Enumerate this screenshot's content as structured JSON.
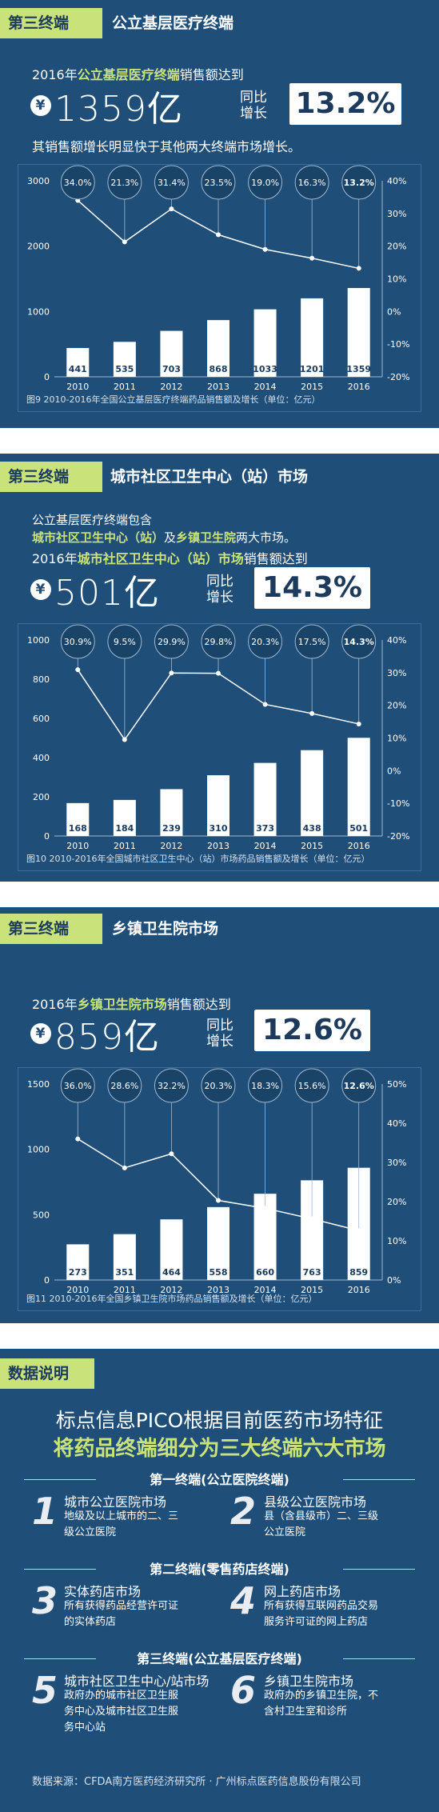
{
  "sections": [
    {
      "tag": "第三终端",
      "title": "公立基层医疗终端",
      "lines": [
        {
          "pre": "2016年",
          "hl": "公立基层医疗终端",
          "post": "销售额达到"
        }
      ],
      "yen": "¥",
      "amount": "1359亿",
      "yoy_line1": "同比",
      "yoy_line2": "增长",
      "growth": "13.2%",
      "note": "其销售额增长明显快于其他两大终端市场增长。",
      "caption": "图9  2010-2016年全国公立基层医疗终端药品销售额及增长（单位：亿元）"
    },
    {
      "tag": "第三终端",
      "title": "城市社区卫生中心（站）市场",
      "lines": [
        {
          "pre": "公立基层医疗终端包含",
          "hl": "",
          "post": ""
        },
        {
          "pre": "",
          "hl": "城市社区卫生中心（站）",
          "post": "及"
        },
        {
          "pre": "",
          "hl": "乡镇卫生院",
          "post": "两大市场。"
        },
        {
          "pre": "2016年",
          "hl": "城市社区卫生中心（站）市场",
          "post": "销售额达到"
        }
      ],
      "yen": "¥",
      "amount": "501亿",
      "yoy_line1": "同比",
      "yoy_line2": "增长",
      "growth": "14.3%",
      "caption": "图10  2010-2016年全国城市社区卫生中心（站）市场药品销售额及增长（单位：亿元）"
    },
    {
      "tag": "第三终端",
      "title": "乡镇卫生院市场",
      "lines": [
        {
          "pre": "2016年",
          "hl": "乡镇卫生院市场",
          "post": "销售额达到"
        }
      ],
      "yen": "¥",
      "amount": "859亿",
      "yoy_line1": "同比",
      "yoy_line2": "增长",
      "growth": "12.6%",
      "caption": "图11  2010-2016年全国乡镇卫生院市场药品销售额及增长（单位：亿元）"
    }
  ],
  "chart_data": [
    {
      "type": "bar",
      "categories": [
        "2010",
        "2011",
        "2012",
        "2013",
        "2014",
        "2015",
        "2016"
      ],
      "series": [
        {
          "values": [
            441,
            535,
            703,
            868,
            1033,
            1201,
            1359
          ]
        },
        {
          "type": "line",
          "values": [
            34.0,
            21.3,
            31.4,
            23.5,
            19.0,
            16.3,
            13.2
          ]
        }
      ],
      "growth_labels": [
        "34.0%",
        "21.3%",
        "31.4%",
        "23.5%",
        "19.0%",
        "16.3%",
        "13.2%"
      ],
      "ylim": [
        0,
        3000
      ],
      "y_ticks": [
        "0",
        "1000",
        "2000",
        "3000"
      ],
      "y2lim": [
        -20,
        40
      ],
      "y2_ticks": [
        "-20%",
        "-10%",
        "0%",
        "10%",
        "20%",
        "30%",
        "40%"
      ]
    },
    {
      "type": "bar",
      "categories": [
        "2010",
        "2011",
        "2012",
        "2013",
        "2014",
        "2015",
        "2016"
      ],
      "series": [
        {
          "values": [
            168,
            184,
            239,
            310,
            373,
            438,
            501
          ]
        },
        {
          "type": "line",
          "values": [
            30.9,
            9.5,
            29.9,
            29.8,
            20.3,
            17.5,
            14.3
          ]
        }
      ],
      "growth_labels": [
        "30.9%",
        "9.5%",
        "29.9%",
        "29.8%",
        "20.3%",
        "17.5%",
        "14.3%"
      ],
      "ylim": [
        0,
        1000
      ],
      "y_ticks": [
        "0",
        "200",
        "400",
        "600",
        "800",
        "1000"
      ],
      "y2lim": [
        -20,
        40
      ],
      "y2_ticks": [
        "-20%",
        "-10%",
        "0%",
        "10%",
        "20%",
        "30%",
        "40%"
      ]
    },
    {
      "type": "bar",
      "categories": [
        "2010",
        "2011",
        "2012",
        "2013",
        "2014",
        "2015",
        "2016"
      ],
      "series": [
        {
          "values": [
            273,
            351,
            464,
            558,
            660,
            763,
            859
          ]
        },
        {
          "type": "line",
          "values": [
            36.0,
            28.6,
            32.2,
            20.3,
            18.3,
            15.6,
            12.6
          ]
        }
      ],
      "growth_labels": [
        "36.0%",
        "28.6%",
        "32.2%",
        "20.3%",
        "18.3%",
        "15.6%",
        "12.6%"
      ],
      "ylim": [
        0,
        1500
      ],
      "y_ticks": [
        "0",
        "500",
        "1000",
        "1500"
      ],
      "y2lim": [
        0,
        50
      ],
      "y2_ticks": [
        "0%",
        "10%",
        "20%",
        "30%",
        "40%",
        "50%"
      ]
    }
  ],
  "info": {
    "tag": "数据说明",
    "headline1": "标点信息PICO根据目前医药市场特征",
    "headline2": "将药品终端细分为三大终端六大市场",
    "groups": [
      {
        "title": "第一终端(公立医院终端)",
        "items": [
          {
            "n": "1",
            "t": "城市公立医院市场",
            "d1": "地级及以上城市的二、三",
            "d2": "级公立医院"
          },
          {
            "n": "2",
            "t": "县级公立医院市场",
            "d1": "县（含县级市）二、三级",
            "d2": "公立医院"
          }
        ]
      },
      {
        "title": "第二终端(零售药店终端)",
        "items": [
          {
            "n": "3",
            "t": "实体药店市场",
            "d1": "所有获得药品经营许可证",
            "d2": "的实体药店"
          },
          {
            "n": "4",
            "t": "网上药店市场",
            "d1": "所有获得互联网药品交易",
            "d2": "服务许可证的网上药店"
          }
        ]
      },
      {
        "title": "第三终端(公立基层医疗终端)",
        "items": [
          {
            "n": "5",
            "t": "城市社区卫生中心/站市场",
            "d1": "政府办的城市社区卫生服",
            "d2": "务中心及城市社区卫生服",
            "d3": "务中心站"
          },
          {
            "n": "6",
            "t": "乡镇卫生院市场",
            "d1": "政府办的乡镇卫生院，不",
            "d2": "含村卫生室和诊所"
          }
        ]
      }
    ],
    "source": "数据来源：CFDA南方医药经济研究所 · 广州标点医药信息股份有限公司"
  },
  "colors": {
    "panel": "#1f4e79",
    "accent": "#c9e27a",
    "bar": "#ffffff",
    "line": "#ffffff"
  }
}
